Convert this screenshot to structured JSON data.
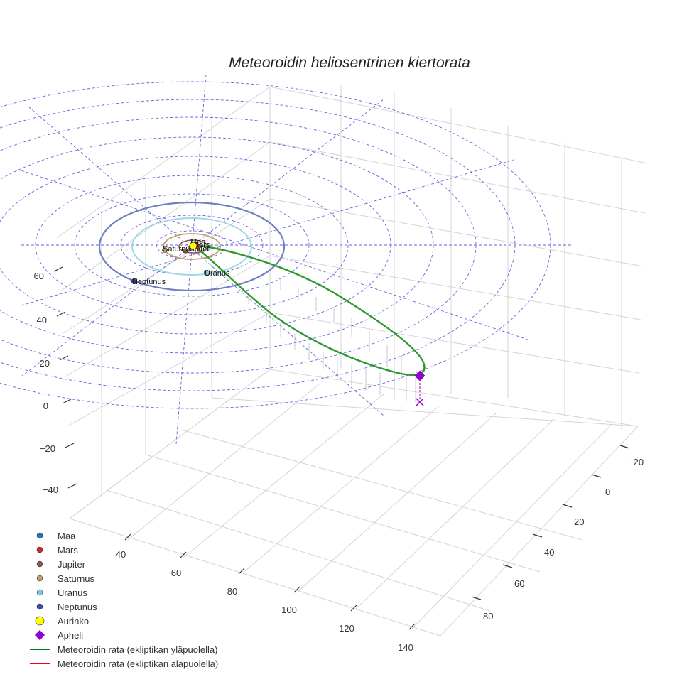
{
  "chart_data": {
    "type": "scatter",
    "title": "Meteoroidin heliosentrinen kiertorata",
    "axes": {
      "z_ticks": [
        "60",
        "40",
        "20",
        "0",
        "−20",
        "−40"
      ],
      "x_ticks": [
        "40",
        "60",
        "80",
        "100",
        "120",
        "140"
      ],
      "y_ticks": [
        "−20",
        "0",
        "20",
        "40",
        "60",
        "80"
      ]
    },
    "planets": [
      {
        "name": "Maa",
        "color": "#1f77b4",
        "orbit_color": "#1f77b4"
      },
      {
        "name": "Mars",
        "color": "#d62728",
        "orbit_color": "#d62728"
      },
      {
        "name": "Jupiter",
        "color": "#8c564b",
        "orbit_color": "#8c564b"
      },
      {
        "name": "Saturnus",
        "color": "#c49c6b",
        "orbit_color": "#c49c6b"
      },
      {
        "name": "Uranus",
        "color": "#7ec8d8",
        "orbit_color": "#9fd8e6"
      },
      {
        "name": "Neptunus",
        "color": "#3b4fa8",
        "orbit_color": "#6f7fbf"
      }
    ],
    "sun": {
      "name": "Aurinko",
      "color": "#ffff00"
    },
    "aphelion": {
      "name": "Apheli",
      "color": "#9400d3"
    },
    "legend": [
      {
        "label": "Maa",
        "type": "dot",
        "color": "#1f77b4"
      },
      {
        "label": "Mars",
        "type": "dot",
        "color": "#d62728"
      },
      {
        "label": "Jupiter",
        "type": "dot",
        "color": "#8c564b"
      },
      {
        "label": "Saturnus",
        "type": "dot",
        "color": "#c49c6b"
      },
      {
        "label": "Uranus",
        "type": "dot",
        "color": "#7ec8d8"
      },
      {
        "label": "Neptunus",
        "type": "dot",
        "color": "#3b4fa8"
      },
      {
        "label": "Aurinko",
        "type": "bigdot",
        "color": "#ffff00"
      },
      {
        "label": "Apheli",
        "type": "diamond",
        "color": "#9400d3"
      },
      {
        "label": "Meteoroidin rata (ekliptikan yläpuolella)",
        "type": "line",
        "color": "#008000"
      },
      {
        "label": "Meteoroidin rata (ekliptikan alapuolella)",
        "type": "line",
        "color": "#ff0000"
      }
    ]
  }
}
